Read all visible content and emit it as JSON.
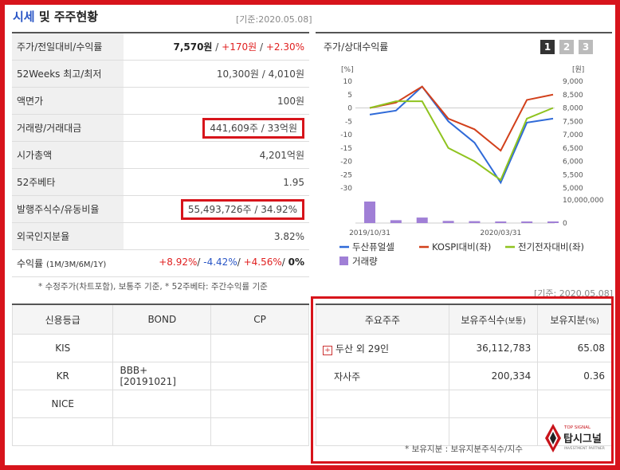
{
  "title": {
    "highlight": "시세",
    "rest": " 및 주주현황"
  },
  "base_date": "[기준:2020.05.08]",
  "info_rows": [
    {
      "label": "주가/전일대비/수익률",
      "price": "7,570원",
      "sep1": " / ",
      "change": "+170원",
      "sep2": " / ",
      "rate": "+2.30%"
    },
    {
      "label": "52Weeks 최고/최저",
      "value": "10,300원 / 4,010원"
    },
    {
      "label": "액면가",
      "value": "100원"
    },
    {
      "label": "거래량/거래대금",
      "value": "441,609주 / 33억원"
    },
    {
      "label": "시가총액",
      "value": "4,201억원"
    },
    {
      "label": "52주베타",
      "value": "1.95"
    },
    {
      "label": "발행주식수/유동비율",
      "value": "55,493,726주 / 34.92%"
    },
    {
      "label": "외국인지분율",
      "value": "3.82%"
    },
    {
      "label": "수익률",
      "label_sub": "(1M/3M/6M/1Y)",
      "r1": "+8.92%",
      "r2": "-4.42%",
      "r3": "+4.56%",
      "r4": "0%"
    }
  ],
  "info_note": "* 수정주가(차트포함), 보통주 기준, * 52주베타: 주간수익률 기준",
  "credit": {
    "headers": [
      "신용등급",
      "BOND",
      "CP"
    ],
    "rows": [
      [
        "KIS",
        "",
        ""
      ],
      [
        "KR",
        "BBB+ [20191021]",
        ""
      ],
      [
        "NICE",
        "",
        ""
      ],
      [
        "",
        "",
        ""
      ]
    ]
  },
  "chart_panel": {
    "title": "주가/상대수익률",
    "pages": [
      "1",
      "2",
      "3"
    ],
    "colors": {
      "page_active": "#333333",
      "page_inactive": "#bbbbbb"
    }
  },
  "chart_data": {
    "type": "line",
    "left_axis": {
      "unit": "[%]",
      "min": -30,
      "max": 10,
      "ticks": [
        "10",
        "5",
        "0",
        "-5",
        "-10",
        "-15",
        "-20",
        "-25",
        "-30"
      ]
    },
    "right_axis": {
      "unit": "[원]",
      "min": 5000,
      "max": 9000,
      "ticks": [
        "9,000",
        "8,500",
        "8,000",
        "7,500",
        "7,000",
        "6,500",
        "6,000",
        "5,500",
        "5,000"
      ]
    },
    "volume_axis": {
      "min": 0,
      "max": 10000000,
      "ticks": [
        "10,000,000",
        "0"
      ]
    },
    "x_labels": [
      "2019/10/31",
      "2020/03/31"
    ],
    "series": [
      {
        "name": "두산퓨얼셀",
        "color": "#2f6ad8",
        "values": [
          -2.5,
          -1,
          8,
          -5,
          -13,
          -28,
          -5.5,
          -4
        ]
      },
      {
        "name": "KOSPI대비(좌)",
        "color": "#d2401b",
        "values": [
          0,
          2,
          8,
          -4,
          -8,
          -16,
          3,
          5
        ]
      },
      {
        "name": "전기전자대비(좌)",
        "color": "#8fc31f",
        "values": [
          0,
          2.5,
          2.5,
          -15,
          -20,
          -27,
          -4,
          0
        ]
      }
    ],
    "volume": {
      "name": "거래량",
      "color": "#a07fd6",
      "values": [
        9000000,
        1200000,
        2300000,
        900000,
        800000,
        600000,
        500000,
        500000
      ]
    }
  },
  "holders": {
    "base_date": "[기준: 2020.05.08]",
    "headers": {
      "holder": "주요주주",
      "shares": "보유주식수",
      "shares_sub": "(보통)",
      "ratio": "보유지분",
      "ratio_sub": "(%)"
    },
    "rows": [
      {
        "name": "두산 외 29인",
        "shares": "36,112,783",
        "ratio": "65.08",
        "expand": true
      },
      {
        "name": "자사주",
        "shares": "200,334",
        "ratio": "0.36",
        "expand": false
      },
      {
        "name": "",
        "shares": "",
        "ratio": "",
        "expand": false
      },
      {
        "name": "",
        "shares": "",
        "ratio": "",
        "expand": false
      }
    ],
    "footnote": "* 보유지분 : 보유지분주식수/지수"
  },
  "logo": {
    "top": "TOP SIGNAL",
    "name": "탑시그널",
    "sub": "INVESTMENT PARTNER"
  }
}
